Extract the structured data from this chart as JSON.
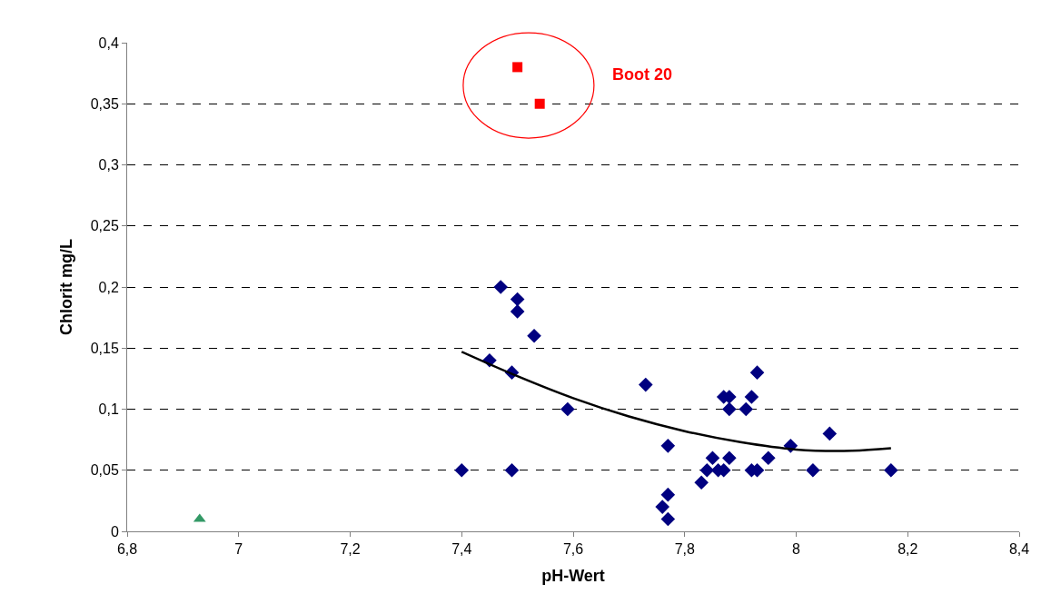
{
  "chart_data": {
    "type": "scatter",
    "xlabel": "pH-Wert",
    "ylabel": "Chlorit mg/L",
    "xlim": [
      6.8,
      8.4
    ],
    "xticks": [
      {
        "value": 6.8,
        "label": "6,8"
      },
      {
        "value": 7,
        "label": "7"
      },
      {
        "value": 7.2,
        "label": "7,2"
      },
      {
        "value": 7.4,
        "label": "7,4"
      },
      {
        "value": 7.6,
        "label": "7,6"
      },
      {
        "value": 7.8,
        "label": "7,8"
      },
      {
        "value": 8,
        "label": "8"
      },
      {
        "value": 8.2,
        "label": "8,2"
      },
      {
        "value": 8.4,
        "label": "8,4"
      }
    ],
    "ylim": [
      0,
      0.4
    ],
    "yticks": [
      {
        "value": 0,
        "label": "0"
      },
      {
        "value": 0.05,
        "label": "0,05"
      },
      {
        "value": 0.1,
        "label": "0,1"
      },
      {
        "value": 0.15,
        "label": "0,15"
      },
      {
        "value": 0.2,
        "label": "0,2"
      },
      {
        "value": 0.25,
        "label": "0,25"
      },
      {
        "value": 0.3,
        "label": "0,3"
      },
      {
        "value": 0.35,
        "label": "0,35"
      },
      {
        "value": 0.4,
        "label": "0,4"
      }
    ],
    "grid": "y",
    "series": [
      {
        "color": "#000080",
        "marker": "diamond",
        "x": [
          7.4,
          7.45,
          7.47,
          7.5,
          7.5,
          7.53,
          7.49,
          7.49,
          7.59,
          7.73,
          7.77,
          7.76,
          7.77,
          7.77,
          7.83,
          7.84,
          7.85,
          7.86,
          7.87,
          7.87,
          7.88,
          7.88,
          7.88,
          7.91,
          7.92,
          7.92,
          7.93,
          7.93,
          7.95,
          7.99,
          8.03,
          8.06,
          8.17
        ],
        "values": [
          0.05,
          0.14,
          0.2,
          0.19,
          0.18,
          0.16,
          0.13,
          0.05,
          0.1,
          0.12,
          0.07,
          0.02,
          0.03,
          0.01,
          0.04,
          0.05,
          0.06,
          0.05,
          0.05,
          0.11,
          0.11,
          0.1,
          0.06,
          0.1,
          0.11,
          0.05,
          0.13,
          0.05,
          0.06,
          0.07,
          0.05,
          0.08,
          0.05
        ]
      },
      {
        "color": "#ff0000",
        "marker": "square",
        "x": [
          7.5,
          7.54
        ],
        "values": [
          0.38,
          0.35
        ]
      },
      {
        "color": "#339966",
        "marker": "triangle",
        "x": [
          6.93
        ],
        "values": [
          0.01
        ]
      },
      {
        "type": "line",
        "color": "#000000",
        "marker": "none",
        "x": [
          7.4,
          7.5,
          7.6,
          7.7,
          7.8,
          7.9,
          8.0,
          8.1,
          8.17
        ],
        "values": [
          0.147,
          0.127,
          0.109,
          0.094,
          0.082,
          0.073,
          0.067,
          0.066,
          0.068
        ]
      }
    ],
    "annotations": [
      "Boot 20"
    ]
  }
}
